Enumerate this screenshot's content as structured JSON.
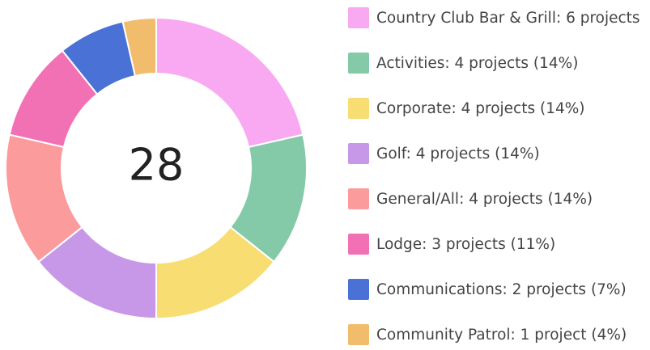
{
  "chart_data": {
    "type": "donut",
    "total": 28,
    "categories": [
      "Country Club Bar & Grill: 6 projects",
      "Activities: 4 projects (14%)",
      "Corporate: 4 projects (14%)",
      "Golf: 4 projects (14%)",
      "General/All: 4 projects (14%)",
      "Lodge: 3 projects (11%)",
      "Communications: 2 projects (7%)",
      "Community Patrol: 1 project (4%)"
    ],
    "values": [
      6,
      4,
      4,
      4,
      4,
      3,
      2,
      1
    ],
    "colors": [
      "#f8a9f1",
      "#84caa9",
      "#f7dd72",
      "#c898e8",
      "#fb9b9b",
      "#f271b4",
      "#4a72d6",
      "#f1bd6c"
    ],
    "legend": "right"
  }
}
